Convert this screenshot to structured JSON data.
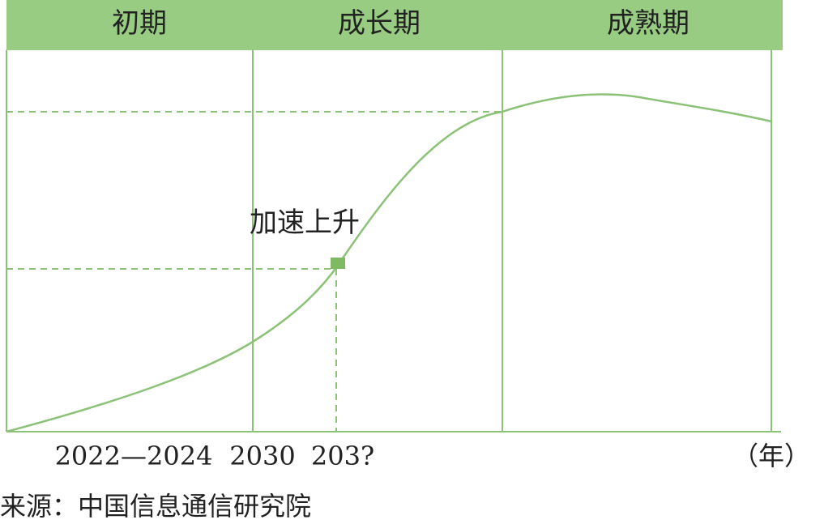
{
  "colors": {
    "header_fill": "#97cc82",
    "line": "#8cc277",
    "marker": "#7dba62",
    "text": "#222222"
  },
  "phases": [
    {
      "label": "初期"
    },
    {
      "label": "成长期"
    },
    {
      "label": "成熟期"
    }
  ],
  "annotation": {
    "label": "加速上升"
  },
  "x_ticks": [
    {
      "label": "2022—2024"
    },
    {
      "label": "2030"
    },
    {
      "label": "203?"
    }
  ],
  "x_unit": "（年）",
  "source": "来源：中国信息通信研究院",
  "curve_shape": "s-curve-with-peak-and-slight-decline",
  "marker_shape": "square"
}
